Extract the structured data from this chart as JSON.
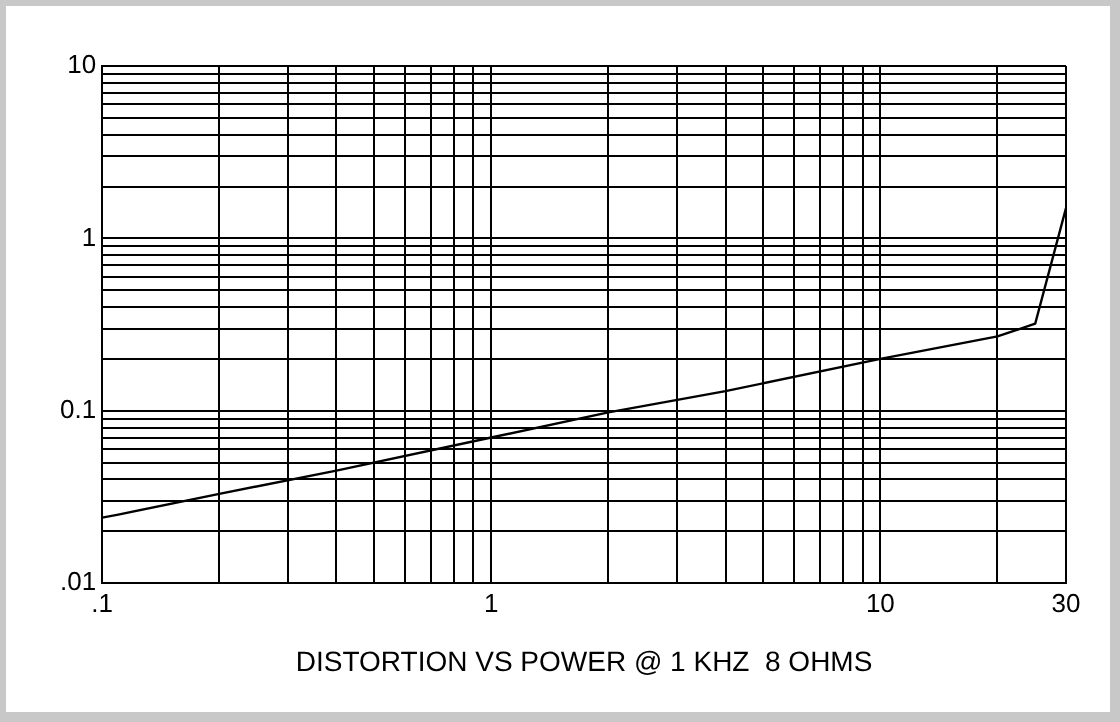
{
  "chart_data": {
    "type": "line",
    "xlabel": "DISTORTION VS POWER @ 1 KHZ  8 OHMS",
    "log": "xy",
    "grid": true,
    "legend": false,
    "marker": "none",
    "line_style": "solid",
    "xlim": [
      0.1,
      30
    ],
    "ylim": [
      0.01,
      10
    ],
    "xticks": [
      {
        "value": 0.1,
        "label": ".1"
      },
      {
        "value": 0.2,
        "label": null
      },
      {
        "value": 0.3,
        "label": null
      },
      {
        "value": 0.4,
        "label": null
      },
      {
        "value": 0.5,
        "label": null
      },
      {
        "value": 0.6,
        "label": null
      },
      {
        "value": 0.7,
        "label": null
      },
      {
        "value": 0.8,
        "label": null
      },
      {
        "value": 0.9,
        "label": null
      },
      1,
      {
        "value": 2,
        "label": null
      },
      {
        "value": 3,
        "label": null
      },
      {
        "value": 4,
        "label": null
      },
      {
        "value": 5,
        "label": null
      },
      {
        "value": 6,
        "label": null
      },
      {
        "value": 7,
        "label": null
      },
      {
        "value": 8,
        "label": null
      },
      {
        "value": 9,
        "label": null
      },
      10,
      {
        "value": 20,
        "label": null
      },
      30
    ],
    "yticks": [
      {
        "value": 0.01,
        "label": ".01"
      },
      {
        "value": 0.02,
        "label": null
      },
      {
        "value": 0.03,
        "label": null
      },
      {
        "value": 0.04,
        "label": null
      },
      {
        "value": 0.05,
        "label": null
      },
      {
        "value": 0.06,
        "label": null
      },
      {
        "value": 0.07,
        "label": null
      },
      {
        "value": 0.08,
        "label": null
      },
      {
        "value": 0.09,
        "label": null
      },
      0.1,
      {
        "value": 0.2,
        "label": null
      },
      {
        "value": 0.3,
        "label": null
      },
      {
        "value": 0.4,
        "label": null
      },
      {
        "value": 0.5,
        "label": null
      },
      {
        "value": 0.6,
        "label": null
      },
      {
        "value": 0.7,
        "label": null
      },
      {
        "value": 0.8,
        "label": null
      },
      {
        "value": 0.9,
        "label": null
      },
      1,
      {
        "value": 2,
        "label": null
      },
      {
        "value": 3,
        "label": null
      },
      {
        "value": 4,
        "label": null
      },
      {
        "value": 5,
        "label": null
      },
      {
        "value": 6,
        "label": null
      },
      {
        "value": 7,
        "label": null
      },
      {
        "value": 8,
        "label": null
      },
      {
        "value": 9,
        "label": null
      },
      10
    ],
    "series": [
      {
        "color": "#000000",
        "x": [
          0.1,
          0.11,
          0.2,
          0.4,
          1,
          2,
          4,
          10,
          20,
          25,
          30
        ],
        "values": [
          0.024,
          0.025,
          0.033,
          0.045,
          0.07,
          0.098,
          0.13,
          0.2,
          0.27,
          0.32,
          1.5
        ]
      }
    ]
  }
}
